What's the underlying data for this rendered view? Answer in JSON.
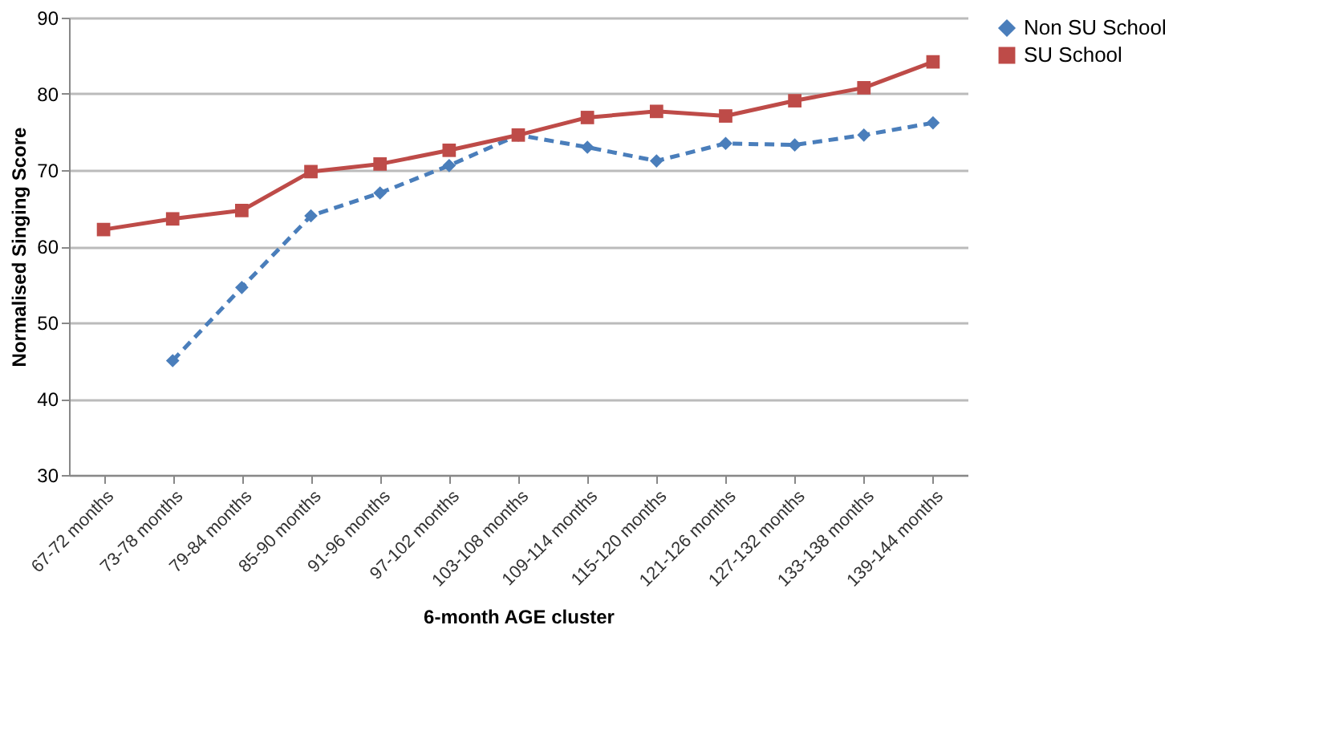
{
  "chart_data": {
    "type": "line",
    "xlabel": "6-month AGE cluster",
    "ylabel": "Normalised Singing Score",
    "categories": [
      "67-72 months",
      "73-78 months",
      "79-84 months",
      "85-90 months",
      "91-96 months",
      "97-102 months",
      "103-108 months",
      "109-114 months",
      "115-120 months",
      "121-126 months",
      "127-132 months",
      "133-138 months",
      "139-144 months"
    ],
    "series": [
      {
        "name": "Non SU School",
        "color": "#4a7ebb",
        "marker": "diamond",
        "line_style": "dashed",
        "values": [
          null,
          45.0,
          54.6,
          64.0,
          67.0,
          70.6,
          74.6,
          73.0,
          71.2,
          73.5,
          73.3,
          74.6,
          76.2
        ]
      },
      {
        "name": "SU School",
        "color": "#be4b48",
        "marker": "square",
        "line_style": "solid",
        "values": [
          62.2,
          63.6,
          64.7,
          69.8,
          70.8,
          72.6,
          74.6,
          76.9,
          77.7,
          77.1,
          79.1,
          80.8,
          84.2
        ]
      }
    ],
    "ylim": [
      30,
      90
    ],
    "yticks": [
      30,
      40,
      50,
      60,
      70,
      80,
      90
    ],
    "grid": "y",
    "legend": "right"
  }
}
